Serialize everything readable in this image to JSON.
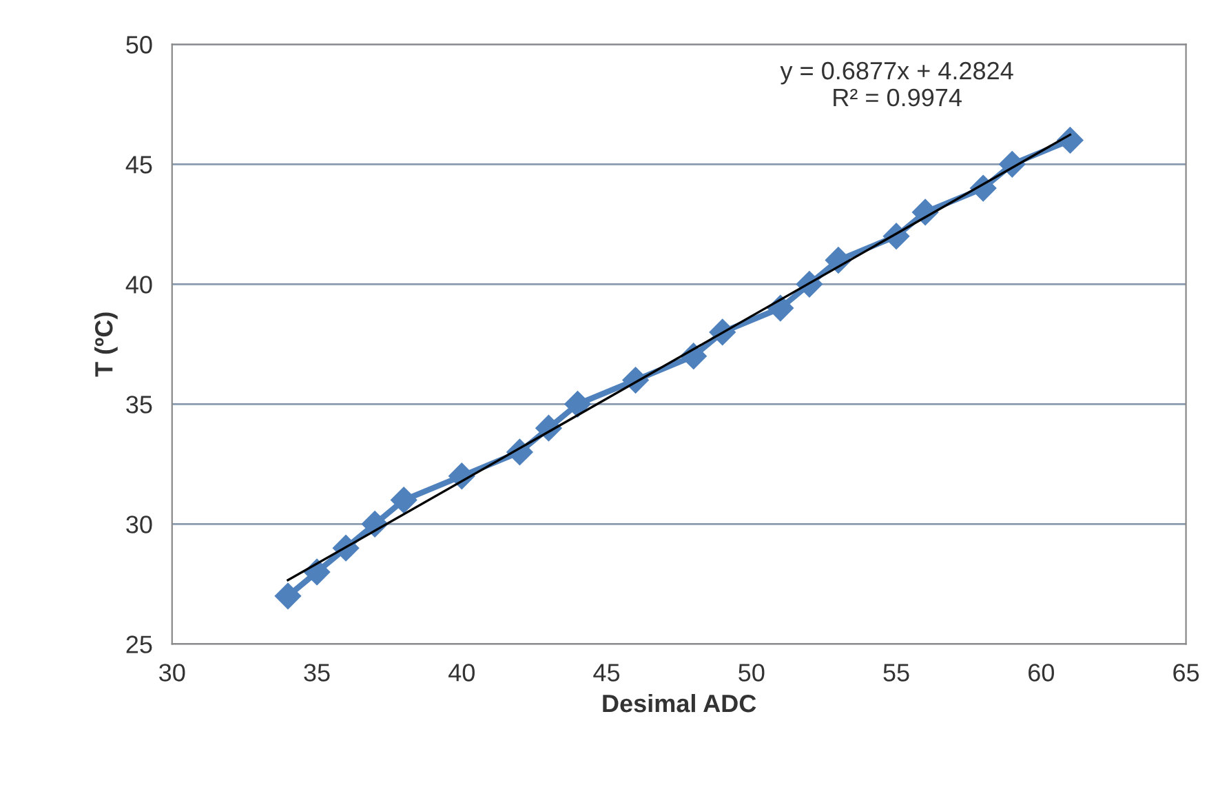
{
  "chart_data": {
    "type": "line",
    "xlabel": "Desimal ADC",
    "ylabel": "T (ºC)",
    "x": [
      34,
      35,
      36,
      37,
      38,
      40,
      42,
      43,
      44,
      46,
      48,
      49,
      51,
      52,
      53,
      55,
      56,
      58,
      59,
      61
    ],
    "series": [
      {
        "color": "#4f81bd",
        "values": [
          27,
          28,
          29,
          30,
          31,
          32,
          33,
          34,
          35,
          36,
          37,
          38,
          39,
          40,
          41,
          42,
          43,
          44,
          45,
          46
        ],
        "marker": "diamond"
      },
      {
        "type": "line",
        "color": "#000000",
        "x": [
          34,
          61
        ],
        "values": [
          27.66,
          46.23
        ],
        "marker": "none"
      }
    ],
    "xlim": [
      30,
      65
    ],
    "xticks": [
      30,
      35,
      40,
      45,
      50,
      55,
      60,
      65
    ],
    "ylim": [
      25,
      50
    ],
    "yticks": [
      25,
      30,
      35,
      40,
      45,
      50
    ],
    "grid": "y",
    "legend": false,
    "annotations": [
      "y = 0.6877x + 4.2824\nR² = 0.9974"
    ]
  }
}
